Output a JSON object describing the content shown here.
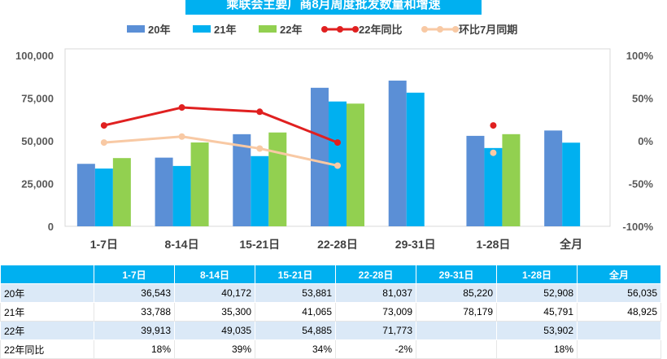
{
  "title": "乘联会主要厂商8月周度批发数量和增速",
  "chart_data": {
    "type": "bar",
    "categories": [
      "1-7日",
      "8-14日",
      "15-21日",
      "22-28日",
      "29-31日",
      "1-28日",
      "全月"
    ],
    "series": [
      {
        "name": "20年",
        "type": "bar",
        "color": "#5b8fd6",
        "values": [
          36543,
          40172,
          53881,
          81037,
          85220,
          52908,
          56035
        ]
      },
      {
        "name": "21年",
        "type": "bar",
        "color": "#00b0f0",
        "values": [
          33788,
          35300,
          41065,
          73009,
          78179,
          45791,
          48925
        ]
      },
      {
        "name": "22年",
        "type": "bar",
        "color": "#92d050",
        "values": [
          39913,
          49035,
          54885,
          71773,
          null,
          53902,
          null
        ]
      },
      {
        "name": "22年同比",
        "type": "line",
        "axis": "right",
        "color": "#e02020",
        "values": [
          0.18,
          0.39,
          0.34,
          -0.02,
          null,
          0.18,
          null
        ]
      },
      {
        "name": "环比7月同期",
        "type": "line",
        "axis": "right",
        "color": "#f8c9a4",
        "values": [
          -0.02,
          0.05,
          -0.09,
          -0.29,
          null,
          -0.14,
          null
        ]
      }
    ],
    "left_axis": {
      "ylim": [
        0,
        100000
      ],
      "ticks": [
        "0",
        "25,000",
        "50,000",
        "75,000",
        "100,000"
      ]
    },
    "right_axis": {
      "ylim": [
        -1,
        1
      ],
      "ticks": [
        "-100%",
        "-50%",
        "0%",
        "50%",
        "100%"
      ]
    },
    "legend_position": "top"
  },
  "table": {
    "header": [
      "",
      "1-7日",
      "8-14日",
      "15-21日",
      "22-28日",
      "29-31日",
      "1-28日",
      "全月"
    ],
    "rows": [
      {
        "label": "20年",
        "cells": [
          "36,543",
          "40,172",
          "53,881",
          "81,037",
          "85,220",
          "52,908",
          "56,035"
        ]
      },
      {
        "label": "21年",
        "cells": [
          "33,788",
          "35,300",
          "41,065",
          "73,009",
          "78,179",
          "45,791",
          "48,925"
        ]
      },
      {
        "label": "22年",
        "cells": [
          "39,913",
          "49,035",
          "54,885",
          "71,773",
          "",
          "53,902",
          ""
        ]
      },
      {
        "label": "22年同比",
        "cells": [
          "18%",
          "39%",
          "34%",
          "-2%",
          "",
          "18%",
          ""
        ]
      }
    ]
  }
}
